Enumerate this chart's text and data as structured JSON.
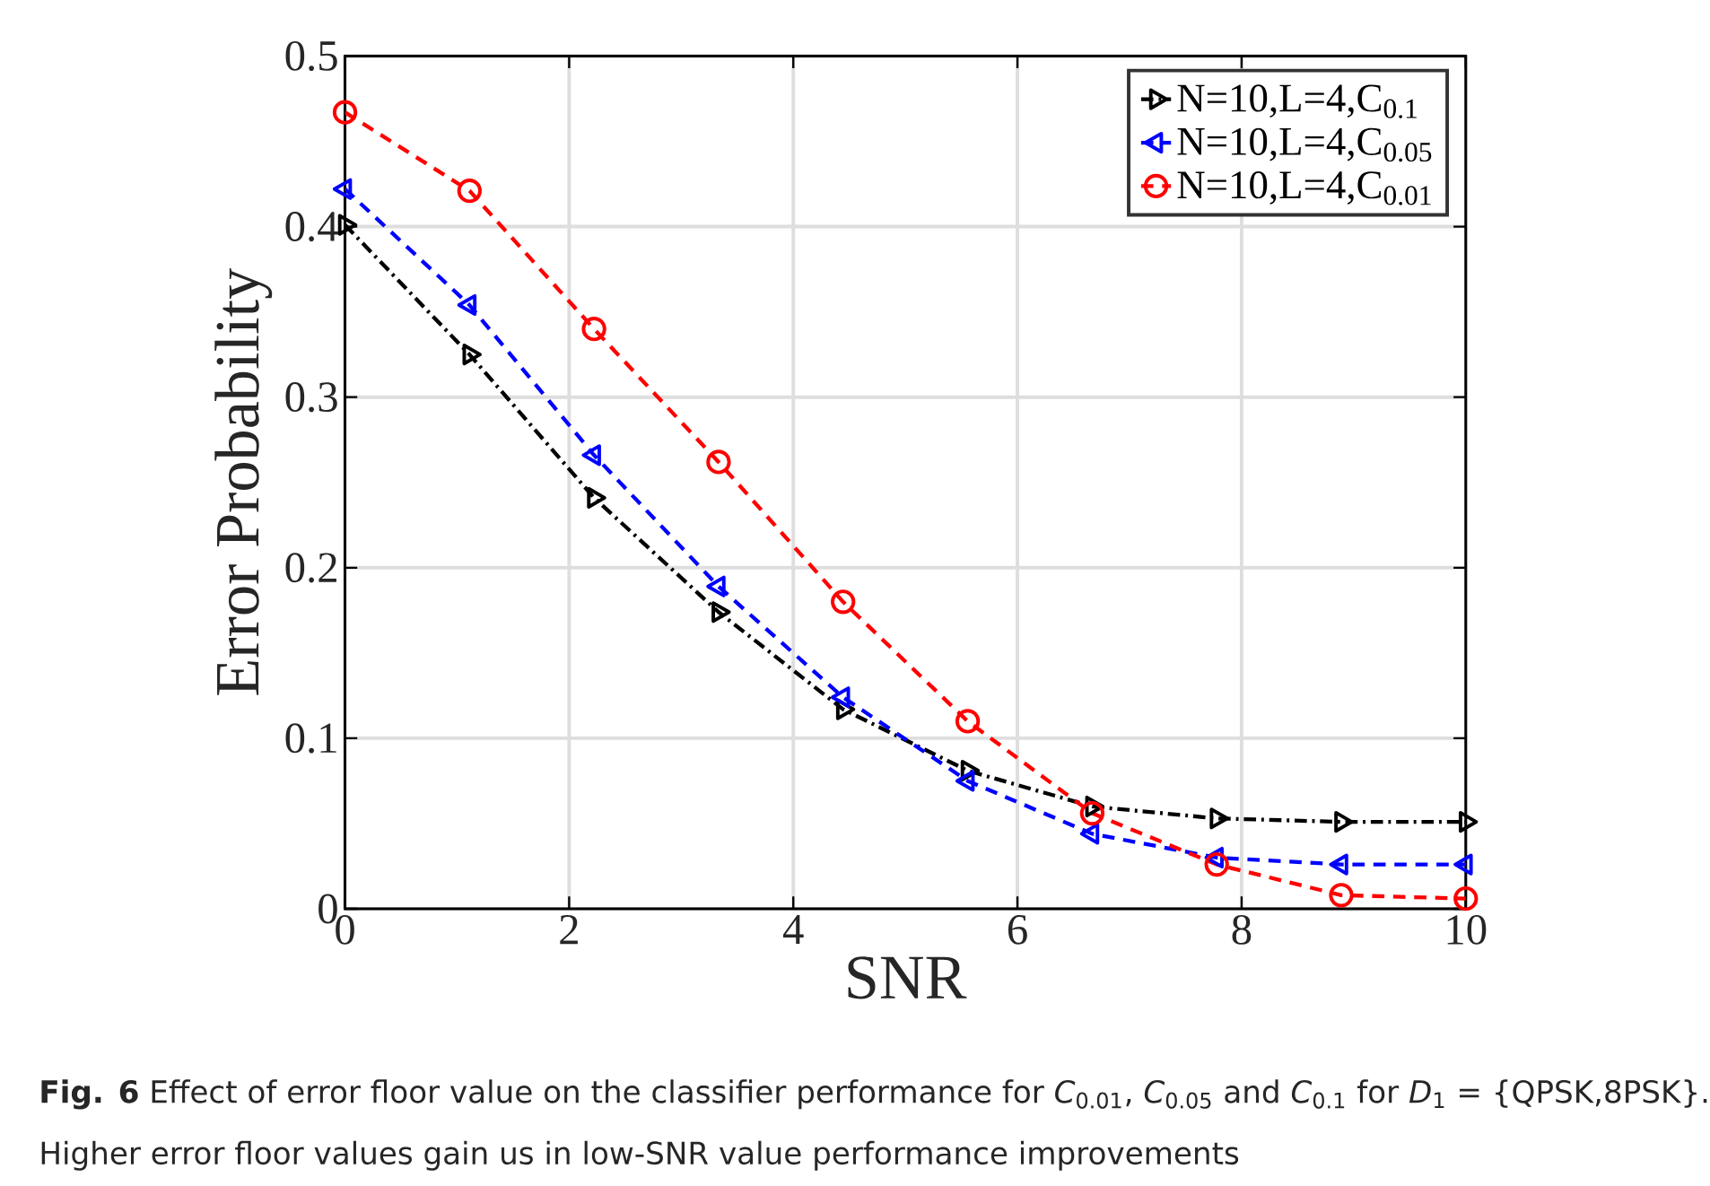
{
  "chart_data": {
    "type": "line",
    "xlabel": "SNR",
    "ylabel": "Error Probability",
    "x": [
      0,
      1.111,
      2.222,
      3.333,
      4.444,
      5.556,
      6.667,
      7.778,
      8.889,
      10
    ],
    "series": [
      {
        "name": "N=10,L=4,C$_{0.1}$",
        "color": "#000000",
        "marker": "triangle",
        "line_style": "dashdot",
        "values": [
          0.401,
          0.325,
          0.241,
          0.174,
          0.117,
          0.081,
          0.06,
          0.053,
          0.051,
          0.051
        ]
      },
      {
        "name": "N=10,L=4,C$_{0.05}$",
        "color": "#0000ff",
        "marker": "triangle",
        "line_style": "dashed",
        "values": [
          0.422,
          0.354,
          0.266,
          0.189,
          0.124,
          0.075,
          0.044,
          0.03,
          0.026,
          0.026
        ]
      },
      {
        "name": "N=10,L=4,C$_{0.01}$",
        "color": "#ff0000",
        "marker": "circle",
        "line_style": "dashed",
        "values": [
          0.467,
          0.421,
          0.34,
          0.262,
          0.18,
          0.11,
          0.056,
          0.026,
          0.008,
          0.006
        ]
      }
    ],
    "xlim": [
      0,
      10
    ],
    "ylim": [
      0,
      0.5
    ],
    "xticks": [
      0,
      2,
      4,
      6,
      8,
      10
    ],
    "yticks": [
      0,
      0.1,
      0.2,
      0.3,
      0.4,
      0.5
    ],
    "grid": true,
    "legend": "top right",
    "annotations": [
      "**Fig. 6**  Effect of error floor value on the classifier performance for *C*$_{0.01}$, *C*$_{0.05}$ and *C*$_{0.1}$ for *D*$_{1}$ = {QPSK,8PSK}.",
      "Higher error floor values gain us in low-SNR value performance improvements"
    ]
  }
}
